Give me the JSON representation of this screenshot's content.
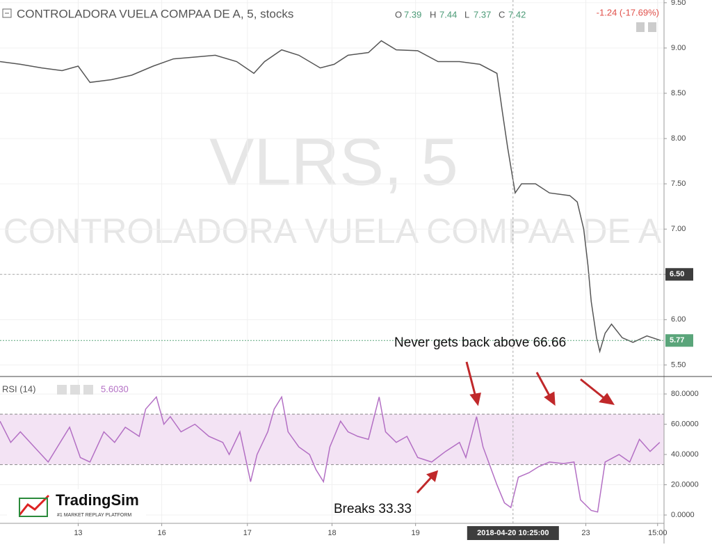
{
  "chart_data": [
    {
      "type": "line",
      "title": "CONTROLADORA VUELA COMPAA DE A, 5, stocks",
      "ohlc": {
        "o_label": "O",
        "o": 7.39,
        "h_label": "H",
        "h": 7.44,
        "l_label": "L",
        "l": 7.37,
        "c_label": "C",
        "c": 7.42
      },
      "change": "-1.24 (-17.69%)",
      "watermark": "VLRS, 5",
      "watermark_name": "CONTROLADORA VUELA COMPAA DE A",
      "xlim": [
        0,
        620
      ],
      "x": [
        0,
        19,
        39,
        58,
        73,
        84,
        104,
        123,
        143,
        162,
        182,
        201,
        221,
        237,
        247,
        263,
        279,
        299,
        312,
        325,
        344,
        356,
        370,
        390,
        409,
        429,
        448,
        464,
        469,
        474,
        481,
        487,
        500,
        513,
        532,
        539,
        545,
        549,
        552,
        557,
        560,
        565,
        571,
        581,
        591,
        604,
        617
      ],
      "series": [
        {
          "color": "#555555",
          "values": [
            8.85,
            8.82,
            8.78,
            8.75,
            8.8,
            8.62,
            8.65,
            8.7,
            8.8,
            8.88,
            8.9,
            8.92,
            8.85,
            8.72,
            8.85,
            8.98,
            8.92,
            8.78,
            8.82,
            8.92,
            8.95,
            9.08,
            8.98,
            8.97,
            8.85,
            8.85,
            8.82,
            8.72,
            8.3,
            7.9,
            7.4,
            7.5,
            7.5,
            7.4,
            7.37,
            7.3,
            7.0,
            6.6,
            6.2,
            5.8,
            5.65,
            5.85,
            5.95,
            5.8,
            5.75,
            5.82,
            5.77
          ]
        }
      ],
      "ylim": [
        5.38,
        9.53
      ],
      "yticks": [
        {
          "value": 5.5,
          "label": "5.50"
        },
        {
          "value": 6,
          "label": "6.00"
        },
        {
          "value": 6.5,
          "label": "6.50"
        },
        {
          "value": 7,
          "label": "7.00"
        },
        {
          "value": 7.5,
          "label": "7.50"
        },
        {
          "value": 8,
          "label": "8.00"
        },
        {
          "value": 8.5,
          "label": "8.50"
        },
        {
          "value": 9,
          "label": "9.00"
        },
        {
          "value": 9.5,
          "label": "9.50"
        }
      ],
      "crosshair_price": {
        "value": 6.5,
        "label": "6.50"
      },
      "last_price": 5.77,
      "annotation": "Never gets back above 66.66",
      "grid": true
    },
    {
      "type": "line",
      "title": "RSI (14)",
      "current": "5.6030",
      "xlim": [
        0,
        620
      ],
      "x": [
        0,
        10,
        19,
        32,
        45,
        58,
        65,
        75,
        84,
        97,
        107,
        117,
        130,
        136,
        146,
        153,
        159,
        169,
        182,
        195,
        208,
        214,
        224,
        234,
        240,
        250,
        256,
        263,
        269,
        279,
        289,
        295,
        302,
        308,
        318,
        325,
        334,
        344,
        354,
        360,
        370,
        380,
        390,
        403,
        416,
        429,
        435,
        445,
        451,
        464,
        471,
        477,
        484,
        494,
        503,
        513,
        526,
        536,
        542,
        552,
        558,
        565,
        578,
        588,
        597,
        607,
        616
      ],
      "series": [
        {
          "color": "#b36fc4",
          "values": [
            62,
            48,
            55,
            45,
            35,
            50,
            58,
            38,
            35,
            55,
            48,
            58,
            52,
            70,
            78,
            60,
            65,
            55,
            60,
            52,
            48,
            40,
            55,
            22,
            40,
            55,
            70,
            78,
            55,
            45,
            40,
            30,
            22,
            45,
            62,
            55,
            52,
            50,
            78,
            55,
            48,
            52,
            38,
            35,
            42,
            48,
            38,
            65,
            45,
            20,
            8,
            5,
            25,
            28,
            32,
            35,
            34,
            35,
            10,
            3,
            2,
            35,
            40,
            35,
            50,
            42,
            48
          ]
        }
      ],
      "band": [
        33.33,
        66.66
      ],
      "ylim": [
        -5.5,
        89.7
      ],
      "yticks": [
        {
          "value": 0,
          "label": "0.0000"
        },
        {
          "value": 20,
          "label": "20.0000"
        },
        {
          "value": 40,
          "label": "40.0000"
        },
        {
          "value": 60,
          "label": "60.0000"
        },
        {
          "value": 80,
          "label": "80.0000"
        }
      ],
      "xticks": [
        {
          "value": 73,
          "label": "13"
        },
        {
          "value": 151,
          "label": "16"
        },
        {
          "value": 231,
          "label": "17"
        },
        {
          "value": 310,
          "label": "18"
        },
        {
          "value": 388,
          "label": "19"
        },
        {
          "value": 547,
          "label": "23"
        },
        {
          "value": 614,
          "label": "15:00"
        }
      ],
      "crosshair_x": {
        "value": 479,
        "label": "2018-04-20 10:25:00"
      },
      "annotation": "Breaks 33.33",
      "grid": true
    }
  ],
  "logo": {
    "name": "TradingSim",
    "tagline": "#1 MARKET REPLAY PLATFORM"
  }
}
